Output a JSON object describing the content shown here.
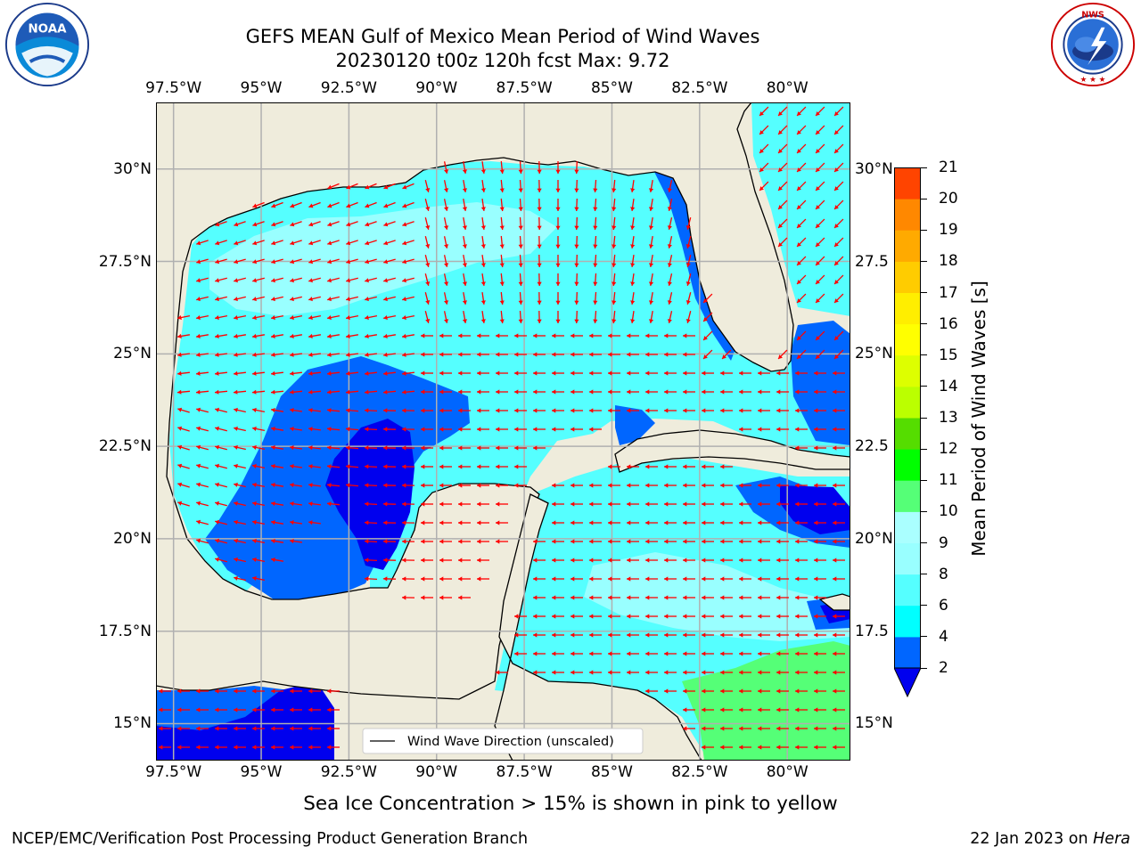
{
  "header": {
    "title_line1": "GEFS MEAN Gulf of Mexico Mean Period of Wind Waves",
    "title_line2": "20230120 t00z 120h fcst   Max: 9.72"
  },
  "logos": {
    "left": {
      "name": "noaa-logo",
      "text": "NOAA",
      "ring_text": "NATIONAL OCEANIC AND ATMOSPHERIC ADMINISTRATION · U.S. DEPARTMENT OF COMMERCE"
    },
    "right": {
      "name": "nws-logo",
      "ring_text": "NATIONAL WEATHER SERVICE"
    }
  },
  "map": {
    "lon_ticks": [
      "97.5°W",
      "95°W",
      "92.5°W",
      "90°W",
      "87.5°W",
      "85°W",
      "82.5°W",
      "80°W"
    ],
    "lat_ticks_left": [
      "30°N",
      "27.5°N",
      "25°N",
      "22.5°N",
      "20°N",
      "17.5°N",
      "15°N"
    ],
    "lat_ticks_right": [
      "30°N",
      "27.5",
      "25°N",
      "22.5",
      "20°N",
      "17.5",
      "15°N"
    ],
    "lon_range": [
      -98.0,
      -78.2
    ],
    "lat_range": [
      14.0,
      31.8
    ],
    "legend_label": "Wind Wave Direction (unscaled)",
    "colors": {
      "land": "#efecdc",
      "coast": "#000000",
      "arrow": "#ff0000",
      "grid": "#b0b0b0"
    }
  },
  "colorbar": {
    "label": "Mean Period of Wind Waves [s]",
    "ticks": [
      "2",
      "4",
      "6",
      "8",
      "9",
      "10",
      "11",
      "12",
      "13",
      "14",
      "15",
      "16",
      "17",
      "18",
      "19",
      "20",
      "21"
    ],
    "colors": [
      "#0066ff",
      "#00ffff",
      "#55ffff",
      "#99ffff",
      "#aaffff",
      "#55ff77",
      "#00ff00",
      "#55dd00",
      "#bbff00",
      "#ddff00",
      "#ffff00",
      "#ffee00",
      "#ffcc00",
      "#ffaa00",
      "#ff8800",
      "#ff4400",
      "#ff0000"
    ],
    "under_color": "#0000ee"
  },
  "footer": {
    "ice_note": "Sea Ice Concentration > 15% is shown in pink to yellow",
    "credit": "NCEP/EMC/Verification Post Processing Product Generation Branch",
    "date": "22 Jan 2023 on ",
    "machine": "Hera"
  }
}
